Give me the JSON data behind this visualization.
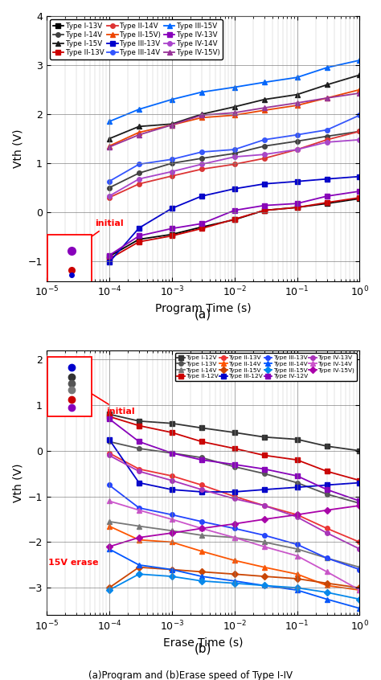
{
  "program_times": [
    0.0001,
    0.0003,
    0.001,
    0.003,
    0.01,
    0.03,
    0.1,
    0.3,
    1.0
  ],
  "erase_times": [
    0.0001,
    0.0003,
    0.001,
    0.003,
    0.01,
    0.03,
    0.1,
    0.3,
    1.0
  ],
  "program_series": [
    {
      "label": "Type I-13V",
      "color": "#000000",
      "marker": "s",
      "data": [
        -0.9,
        -0.55,
        -0.45,
        -0.3,
        -0.15,
        0.04,
        0.1,
        0.18,
        0.28
      ]
    },
    {
      "label": "Type I-14V",
      "color": "#404040",
      "marker": "o",
      "data": [
        0.5,
        0.8,
        1.0,
        1.1,
        1.2,
        1.35,
        1.45,
        1.55,
        1.65
      ]
    },
    {
      "label": "Type I-15V",
      "color": "#1a1a1a",
      "marker": "^",
      "data": [
        1.5,
        1.75,
        1.8,
        2.0,
        2.15,
        2.3,
        2.4,
        2.6,
        2.8
      ]
    },
    {
      "label": "Type II-13V",
      "color": "#cc0000",
      "marker": "s",
      "data": [
        -0.95,
        -0.6,
        -0.48,
        -0.33,
        -0.14,
        0.04,
        0.1,
        0.2,
        0.3
      ]
    },
    {
      "label": "Type II-14V",
      "color": "#dd3333",
      "marker": "o",
      "data": [
        0.3,
        0.58,
        0.74,
        0.88,
        0.98,
        1.1,
        1.28,
        1.48,
        1.65
      ]
    },
    {
      "label": "Type II-15V)",
      "color": "#ee4400",
      "marker": "^",
      "data": [
        1.35,
        1.63,
        1.78,
        1.93,
        1.98,
        2.08,
        2.18,
        2.33,
        2.5
      ]
    },
    {
      "label": "Type III-13V",
      "color": "#0000cc",
      "marker": "s",
      "data": [
        -1.02,
        -0.32,
        0.08,
        0.33,
        0.48,
        0.58,
        0.63,
        0.68,
        0.73
      ]
    },
    {
      "label": "Type III-14V",
      "color": "#3355ff",
      "marker": "o",
      "data": [
        0.63,
        0.98,
        1.08,
        1.23,
        1.28,
        1.48,
        1.58,
        1.68,
        1.98
      ]
    },
    {
      "label": "Type III-15V",
      "color": "#0066ff",
      "marker": "^",
      "data": [
        1.85,
        2.1,
        2.3,
        2.45,
        2.55,
        2.65,
        2.75,
        2.95,
        3.1
      ]
    },
    {
      "label": "Type IV-13V",
      "color": "#8800bb",
      "marker": "s",
      "data": [
        -0.88,
        -0.48,
        -0.33,
        -0.23,
        0.04,
        0.14,
        0.18,
        0.33,
        0.43
      ]
    },
    {
      "label": "Type IV-14V",
      "color": "#aa44cc",
      "marker": "o",
      "data": [
        0.33,
        0.68,
        0.83,
        0.98,
        1.13,
        1.18,
        1.28,
        1.43,
        1.48
      ]
    },
    {
      "label": "Type IV-15V)",
      "color": "#993399",
      "marker": "^",
      "data": [
        1.33,
        1.58,
        1.78,
        1.98,
        2.03,
        2.13,
        2.23,
        2.33,
        2.43
      ]
    }
  ],
  "erase_series": [
    {
      "label": "Type I-12V",
      "color": "#333333",
      "marker": "s",
      "data": [
        0.8,
        0.65,
        0.6,
        0.5,
        0.4,
        0.3,
        0.25,
        0.1,
        0.0
      ]
    },
    {
      "label": "Type I-13V",
      "color": "#555555",
      "marker": "o",
      "data": [
        0.2,
        0.05,
        -0.05,
        -0.15,
        -0.35,
        -0.5,
        -0.7,
        -0.95,
        -1.15
      ]
    },
    {
      "label": "Type I-14V",
      "color": "#777777",
      "marker": "^",
      "data": [
        -1.55,
        -1.65,
        -1.75,
        -1.85,
        -1.9,
        -2.0,
        -2.15,
        -2.35,
        -2.55
      ]
    },
    {
      "label": "Type II-12V",
      "color": "#cc0000",
      "marker": "s",
      "data": [
        0.75,
        0.55,
        0.4,
        0.2,
        0.05,
        -0.1,
        -0.2,
        -0.45,
        -0.65
      ]
    },
    {
      "label": "Type II-13V",
      "color": "#ee3333",
      "marker": "o",
      "data": [
        -0.05,
        -0.4,
        -0.55,
        -0.75,
        -1.0,
        -1.2,
        -1.4,
        -1.7,
        -2.0
      ]
    },
    {
      "label": "Type II-14V",
      "color": "#ff5500",
      "marker": "^",
      "data": [
        -1.65,
        -1.95,
        -2.0,
        -2.2,
        -2.4,
        -2.55,
        -2.7,
        -2.95,
        -3.05
      ]
    },
    {
      "label": "Type II-15V",
      "color": "#cc4400",
      "marker": "D",
      "data": [
        -3.0,
        -2.55,
        -2.6,
        -2.65,
        -2.7,
        -2.75,
        -2.8,
        -2.9,
        -3.0
      ]
    },
    {
      "label": "Type III-12V",
      "color": "#0000cc",
      "marker": "s",
      "data": [
        0.25,
        -0.7,
        -0.85,
        -0.9,
        -0.9,
        -0.85,
        -0.8,
        -0.75,
        -0.7
      ]
    },
    {
      "label": "Type III-13V",
      "color": "#2244ff",
      "marker": "o",
      "data": [
        -0.75,
        -1.25,
        -1.4,
        -1.55,
        -1.7,
        -1.85,
        -2.05,
        -2.35,
        -2.6
      ]
    },
    {
      "label": "Type III-14V",
      "color": "#0055ff",
      "marker": "^",
      "data": [
        -2.15,
        -2.5,
        -2.6,
        -2.75,
        -2.85,
        -2.95,
        -3.05,
        -3.25,
        -3.45
      ]
    },
    {
      "label": "Type III-15V",
      "color": "#0088ee",
      "marker": "D",
      "data": [
        -3.05,
        -2.7,
        -2.75,
        -2.85,
        -2.9,
        -2.95,
        -3.0,
        -3.1,
        -3.25
      ]
    },
    {
      "label": "Type IV-12V",
      "color": "#8800bb",
      "marker": "s",
      "data": [
        0.7,
        0.2,
        -0.05,
        -0.2,
        -0.3,
        -0.4,
        -0.55,
        -0.85,
        -1.1
      ]
    },
    {
      "label": "Type IV-13V",
      "color": "#aa33bb",
      "marker": "o",
      "data": [
        -0.1,
        -0.45,
        -0.65,
        -0.85,
        -1.05,
        -1.2,
        -1.45,
        -1.8,
        -2.15
      ]
    },
    {
      "label": "Type IV-14V",
      "color": "#cc55cc",
      "marker": "^",
      "data": [
        -1.1,
        -1.3,
        -1.5,
        -1.7,
        -1.9,
        -2.1,
        -2.3,
        -2.65,
        -3.05
      ]
    },
    {
      "label": "Type IV-15V)",
      "color": "#aa00aa",
      "marker": "D",
      "data": [
        -2.1,
        -1.9,
        -1.8,
        -1.7,
        -1.6,
        -1.5,
        -1.4,
        -1.3,
        -1.2
      ]
    }
  ],
  "caption": "(a)Program and (b)Erase speed of Type I-IV"
}
